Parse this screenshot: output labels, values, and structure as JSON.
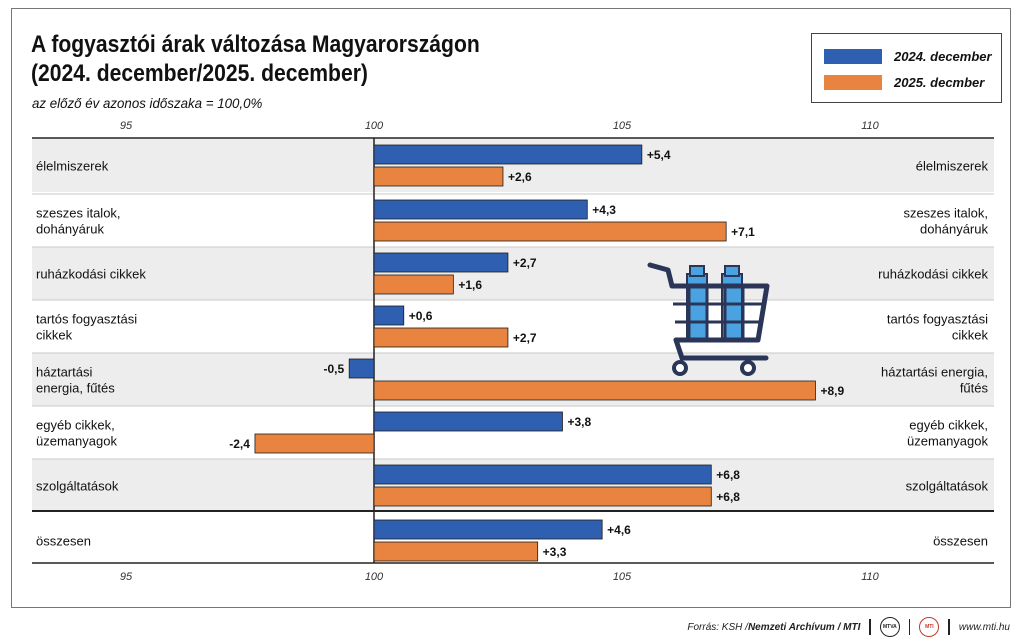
{
  "title_line1": "A fogyasztói árak változása Magyarországon",
  "title_line2": "(2024. december/2025. december)",
  "subtitle": "az előző év azonos időszaka = 100,0%",
  "legend": [
    {
      "label": "2024. december",
      "color": "#2e5fb0"
    },
    {
      "label": "2025. decmber",
      "color": "#e8843f"
    }
  ],
  "chart_data": {
    "type": "bar",
    "orientation": "horizontal",
    "baseline": 100,
    "xlim": [
      95,
      110
    ],
    "xticks": [
      "95",
      "100",
      "105",
      "110"
    ],
    "colors": {
      "2024. december": "#2e5fb0",
      "2025. decmber": "#e8843f"
    },
    "categories": [
      [
        "élelmiszerek"
      ],
      [
        "szeszes italok,",
        "dohányáruk"
      ],
      [
        "ruházkodási cikkek"
      ],
      [
        "tartós fogyasztási",
        "cikkek"
      ],
      [
        "háztartási",
        "energia, fűtés"
      ],
      [
        "egyéb cikkek,",
        "üzemanyagok"
      ],
      [
        "szolgáltatások"
      ],
      [
        "összesen"
      ]
    ],
    "right_labels": [
      [
        "élelmiszerek"
      ],
      [
        "szeszes italok,",
        "dohányáruk"
      ],
      [
        "ruházkodási cikkek"
      ],
      [
        "tartós fogyasztási",
        "cikkek"
      ],
      [
        "háztartási energia,",
        "fűtés"
      ],
      [
        "egyéb cikkek,",
        "üzemanyagok"
      ],
      [
        "szolgáltatások"
      ],
      [
        "összesen"
      ]
    ],
    "series": [
      {
        "name": "2024. december",
        "values": [
          5.4,
          4.3,
          2.7,
          0.6,
          -0.5,
          3.8,
          6.8,
          4.6
        ],
        "labels": [
          "+5,4",
          "+4,3",
          "+2,7",
          "+0,6",
          "-0,5",
          "+3,8",
          "+6,8",
          "+4,6"
        ]
      },
      {
        "name": "2025. decmber",
        "values": [
          2.6,
          7.1,
          1.6,
          2.7,
          8.9,
          -2.4,
          6.8,
          3.3
        ],
        "labels": [
          "+2,6",
          "+7,1",
          "+1,6",
          "+2,7",
          "+8,9",
          "-2,4",
          "+6,8",
          "+3,3"
        ]
      }
    ]
  },
  "footer": {
    "source_prefix": "Forrás: KSH / ",
    "source_bold": "Nemzeti Archívum / MTI",
    "badge1": "MTVA",
    "badge2": "MTI",
    "website": "www.mti.hu"
  },
  "decoration": {
    "cart_icon": "shopping-cart-icon",
    "cart_color": "#2a3557",
    "bottle_color": "#4aa3e0"
  }
}
